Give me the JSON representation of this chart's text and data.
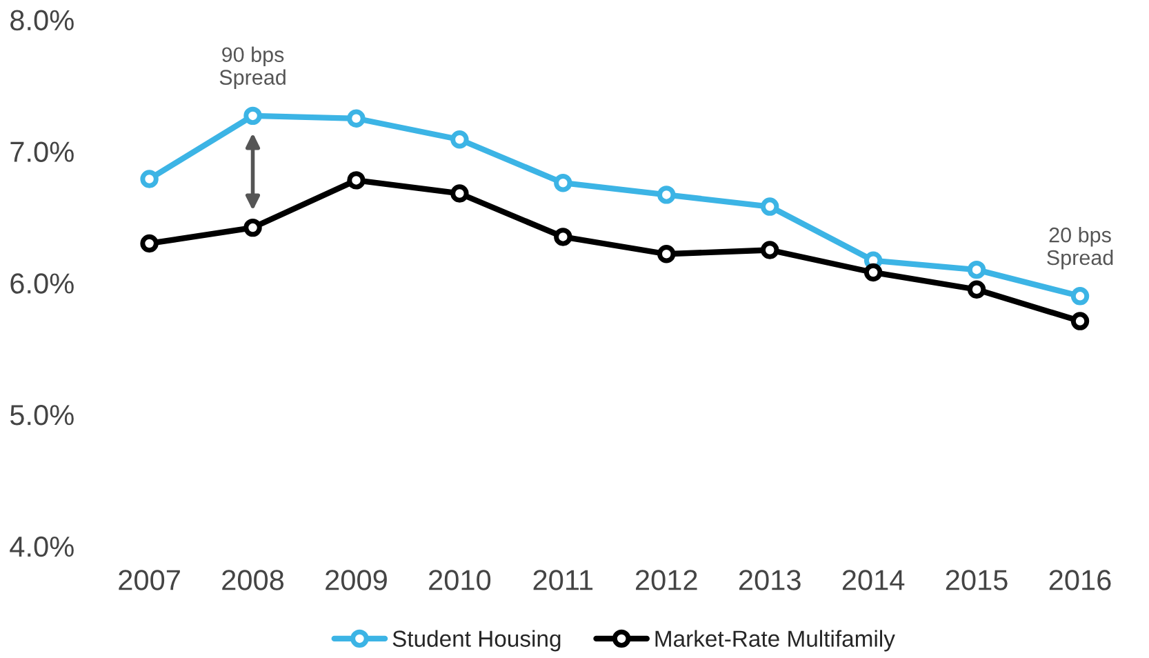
{
  "chart_data": {
    "type": "line",
    "categories": [
      "2007",
      "2008",
      "2009",
      "2010",
      "2011",
      "2012",
      "2013",
      "2014",
      "2015",
      "2016"
    ],
    "series": [
      {
        "name": "Student Housing",
        "color": "#3cb4e5",
        "values": [
          6.79,
          7.27,
          7.25,
          7.09,
          6.76,
          6.67,
          6.58,
          6.17,
          6.1,
          5.9
        ]
      },
      {
        "name": "Market-Rate Multifamily",
        "color": "#000000",
        "values": [
          6.3,
          6.42,
          6.78,
          6.68,
          6.35,
          6.22,
          6.25,
          6.08,
          5.95,
          5.71
        ]
      }
    ],
    "ylim": [
      4.0,
      8.0
    ],
    "yticks": [
      {
        "value": 4.0,
        "label": "4.0%"
      },
      {
        "value": 5.0,
        "label": "5.0%"
      },
      {
        "value": 6.0,
        "label": "6.0%"
      },
      {
        "value": 7.0,
        "label": "7.0%"
      },
      {
        "value": 8.0,
        "label": "8.0%"
      }
    ],
    "annotations": [
      {
        "text": "90 bps\nSpread",
        "x": "2008",
        "y": 7.27
      },
      {
        "text": "20 bps\nSpread",
        "x": "2016",
        "y": 5.9
      }
    ],
    "marker": "circle",
    "line_style": "solid",
    "grid": false,
    "legend": "bottom"
  }
}
